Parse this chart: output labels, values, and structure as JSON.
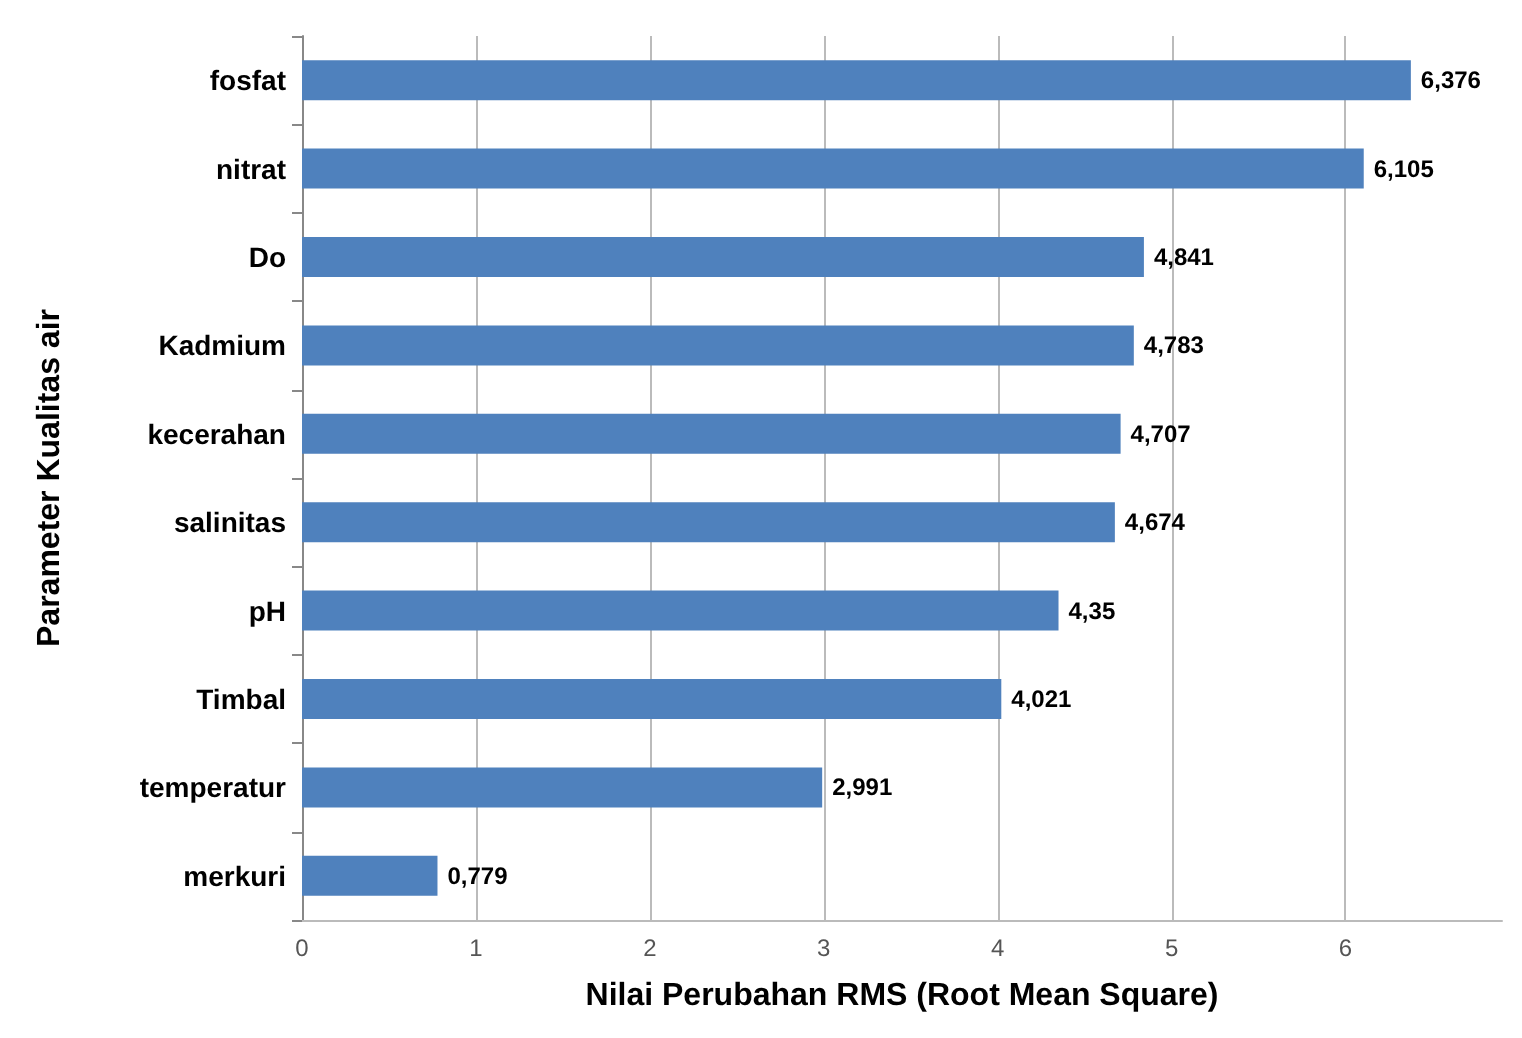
{
  "chart_data": {
    "type": "bar",
    "orientation": "horizontal",
    "xlabel": "Nilai Perubahan RMS (Root Mean Square)",
    "ylabel": "Parameter Kualitas air",
    "categories": [
      "fosfat",
      "nitrat",
      "Do",
      "Kadmium",
      "kecerahan",
      "salinitas",
      "pH",
      "Timbal",
      "temperatur",
      "merkuri"
    ],
    "values": [
      6.376,
      6.105,
      4.841,
      4.783,
      4.707,
      4.674,
      4.35,
      4.021,
      2.991,
      0.779
    ],
    "value_labels": [
      "6,376",
      "6,105",
      "4,841",
      "4,783",
      "4,707",
      "4,674",
      "4,35",
      "4,021",
      "2,991",
      "0,779"
    ],
    "color": "#4f81bd",
    "xlim": [
      0,
      6.9
    ],
    "xticks": [
      0,
      1,
      2,
      3,
      4,
      5,
      6
    ],
    "grid": "x"
  }
}
